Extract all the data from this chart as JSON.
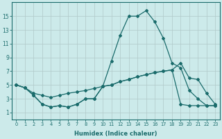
{
  "xlabel": "Humidex (Indice chaleur)",
  "x_ticks": [
    0,
    1,
    2,
    3,
    4,
    5,
    6,
    7,
    8,
    9,
    10,
    11,
    12,
    13,
    14,
    15,
    16,
    17,
    18,
    19,
    20,
    21,
    22,
    23
  ],
  "xlim": [
    -0.5,
    23.5
  ],
  "ylim": [
    0,
    17
  ],
  "y_ticks": [
    1,
    3,
    5,
    7,
    9,
    11,
    13,
    15
  ],
  "background_color": "#cceaea",
  "grid_color": "#b0c8c8",
  "line_color": "#1a6b6b",
  "line1_x": [
    0,
    1,
    2,
    3,
    4,
    5,
    6,
    7,
    8,
    9,
    10,
    11,
    12,
    13,
    14,
    15,
    16,
    17,
    18,
    19,
    20,
    21,
    22,
    23
  ],
  "line1_y": [
    5.0,
    4.6,
    3.5,
    2.2,
    1.8,
    2.0,
    1.8,
    2.2,
    3.0,
    3.0,
    4.8,
    8.5,
    12.2,
    15.0,
    15.0,
    15.8,
    14.2,
    11.8,
    8.2,
    7.5,
    4.2,
    3.0,
    2.0,
    2.0
  ],
  "line2_x": [
    0,
    1,
    2,
    3,
    4,
    5,
    6,
    7,
    8,
    9,
    10,
    11,
    12,
    13,
    14,
    15,
    16,
    17,
    18,
    19,
    20,
    21,
    22,
    23
  ],
  "line2_y": [
    5.0,
    4.6,
    3.8,
    3.5,
    3.2,
    3.5,
    3.8,
    4.0,
    4.2,
    4.5,
    4.8,
    5.0,
    5.5,
    5.8,
    6.2,
    6.5,
    6.8,
    7.0,
    7.2,
    8.2,
    6.0,
    5.8,
    3.8,
    2.2
  ],
  "line3_x": [
    0,
    1,
    2,
    3,
    4,
    5,
    6,
    7,
    8,
    9,
    10,
    11,
    12,
    13,
    14,
    15,
    16,
    17,
    18,
    19,
    20,
    21,
    22,
    23
  ],
  "line3_y": [
    5.0,
    4.6,
    3.5,
    2.2,
    1.8,
    2.0,
    1.8,
    2.2,
    3.0,
    3.0,
    4.8,
    5.0,
    5.5,
    5.8,
    6.2,
    6.5,
    6.8,
    7.0,
    7.2,
    2.2,
    2.0,
    2.0,
    2.0,
    2.0
  ]
}
